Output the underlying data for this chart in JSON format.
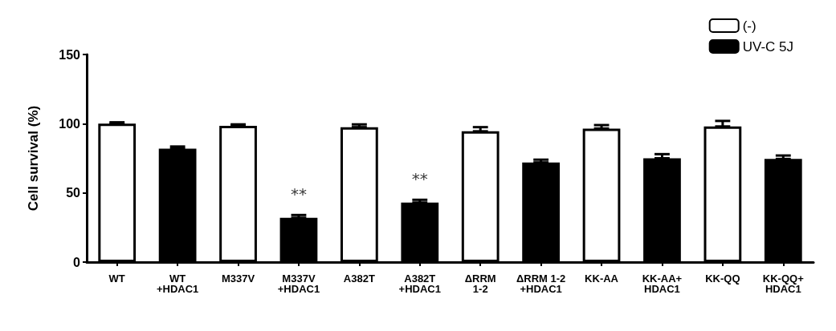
{
  "chart_data": {
    "type": "bar",
    "ylabel": "Cell survival (%)",
    "categories": [
      "WT",
      "WT\n+HDAC1",
      "M337V",
      "M337V\n+HDAC1",
      "A382T",
      "A382T\n+HDAC1",
      "ΔRRM\n1-2",
      "ΔRRM 1-2\n+HDAC1",
      "KK-AA",
      "KK-AA+\nHDAC1",
      "KK-QQ",
      "KK-QQ+\nHDAC1"
    ],
    "series": [
      {
        "name": "(-)",
        "color": "#ffffff",
        "values": [
          100,
          null,
          98.5,
          null,
          97.5,
          null,
          94.5,
          null,
          96.5,
          null,
          98,
          null
        ],
        "errors": [
          [
            100,
            101
          ],
          null,
          [
            98.5,
            99.5
          ],
          null,
          [
            97.5,
            99.5
          ],
          null,
          [
            94.5,
            97.5
          ],
          null,
          [
            96.5,
            99
          ],
          null,
          [
            98,
            102
          ],
          null
        ]
      },
      {
        "name": "UV-C 5J",
        "color": "#000000",
        "values": [
          null,
          82,
          null,
          32,
          null,
          43,
          null,
          72,
          null,
          75,
          null,
          74.5
        ],
        "value_labels": [
          null,
          null,
          null,
          "**",
          null,
          "**",
          null,
          null,
          null,
          null,
          null,
          null
        ],
        "errors": [
          null,
          [
            82,
            83.5
          ],
          null,
          [
            32,
            34
          ],
          null,
          [
            43,
            45
          ],
          null,
          [
            72,
            74
          ],
          null,
          [
            75,
            78
          ],
          null,
          [
            74.5,
            77
          ]
        ]
      }
    ],
    "ylim": [
      0,
      150
    ],
    "yticks": [
      0,
      50,
      100,
      150
    ],
    "grid": false,
    "legend": "top right"
  }
}
